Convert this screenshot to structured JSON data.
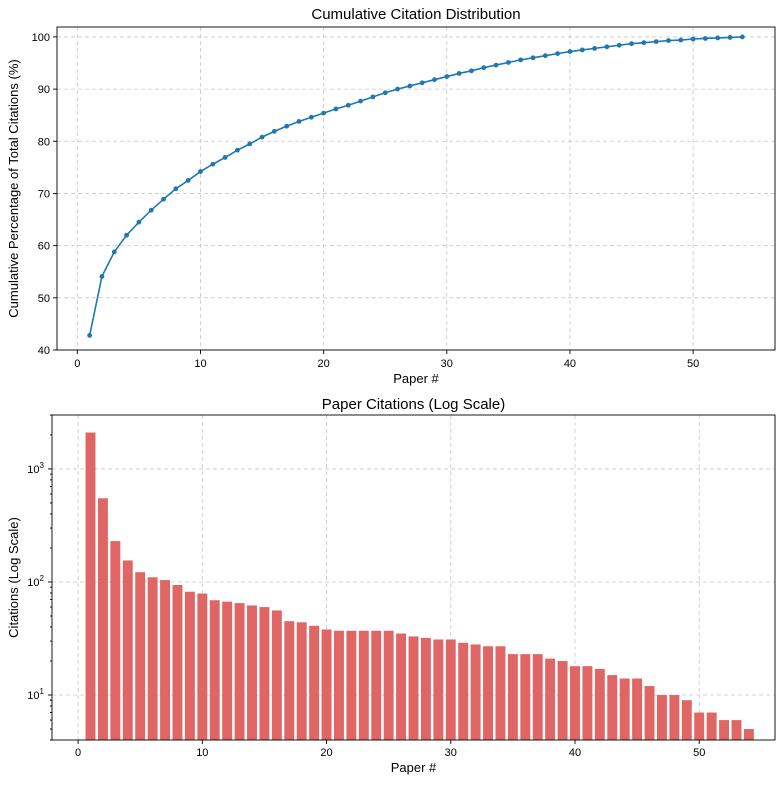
{
  "chart_data": [
    {
      "type": "line",
      "title": "Cumulative Citation Distribution",
      "xlabel": "Paper #",
      "ylabel": "Cumulative Percentage of Total Citations (%)",
      "xlim": [
        -1.65,
        56.65
      ],
      "ylim": [
        40,
        101.9
      ],
      "xticks": [
        0,
        10,
        20,
        30,
        40,
        50
      ],
      "yticks": [
        40,
        50,
        60,
        70,
        80,
        90,
        100
      ],
      "grid": true,
      "color": "#1f77b4",
      "x": [
        1,
        2,
        3,
        4,
        5,
        6,
        7,
        8,
        9,
        10,
        11,
        12,
        13,
        14,
        15,
        16,
        17,
        18,
        19,
        20,
        21,
        22,
        23,
        24,
        25,
        26,
        27,
        28,
        29,
        30,
        31,
        32,
        33,
        34,
        35,
        36,
        37,
        38,
        39,
        40,
        41,
        42,
        43,
        44,
        45,
        46,
        47,
        48,
        49,
        50,
        51,
        52,
        53,
        54
      ],
      "y": [
        42.8,
        54.1,
        58.8,
        62.0,
        64.5,
        66.8,
        68.9,
        70.9,
        72.5,
        74.2,
        75.6,
        76.9,
        78.3,
        79.5,
        80.8,
        81.9,
        82.9,
        83.8,
        84.6,
        85.4,
        86.2,
        86.9,
        87.7,
        88.5,
        89.3,
        90.0,
        90.6,
        91.2,
        91.8,
        92.4,
        93.0,
        93.5,
        94.1,
        94.6,
        95.1,
        95.6,
        96.0,
        96.4,
        96.8,
        97.2,
        97.5,
        97.8,
        98.1,
        98.4,
        98.7,
        98.9,
        99.1,
        99.3,
        99.4,
        99.6,
        99.7,
        99.8,
        99.9,
        100.0
      ]
    },
    {
      "type": "bar",
      "title": "Paper Citations (Log Scale)",
      "xlabel": "Paper #",
      "ylabel": "Citations (Log Scale)",
      "yscale": "log",
      "xlim": [
        -2.1,
        56.1
      ],
      "ylim": [
        4,
        3000
      ],
      "xticks": [
        0,
        10,
        20,
        30,
        40,
        50
      ],
      "yticks": [
        10,
        100,
        1000
      ],
      "ytick_labels": [
        [
          "10",
          "1"
        ],
        [
          "10",
          "2"
        ],
        [
          "10",
          "3"
        ]
      ],
      "grid": true,
      "color": "#e06666",
      "x": [
        1,
        2,
        3,
        4,
        5,
        6,
        7,
        8,
        9,
        10,
        11,
        12,
        13,
        14,
        15,
        16,
        17,
        18,
        19,
        20,
        21,
        22,
        23,
        24,
        25,
        26,
        27,
        28,
        29,
        30,
        31,
        32,
        33,
        34,
        35,
        36,
        37,
        38,
        39,
        40,
        41,
        42,
        43,
        44,
        45,
        46,
        47,
        48,
        49,
        50,
        51,
        52,
        53,
        54
      ],
      "values": [
        2100,
        550,
        230,
        155,
        122,
        110,
        104,
        94,
        82,
        79,
        69,
        67,
        65,
        62,
        60,
        56,
        45,
        44,
        41,
        38,
        37,
        37,
        37,
        37,
        37,
        35,
        33,
        32,
        31,
        31,
        29,
        28,
        27,
        27,
        23,
        23,
        23,
        21,
        20,
        18,
        18,
        17,
        15,
        14,
        14,
        12,
        10,
        10,
        9,
        7,
        7,
        6,
        6,
        5
      ]
    }
  ]
}
